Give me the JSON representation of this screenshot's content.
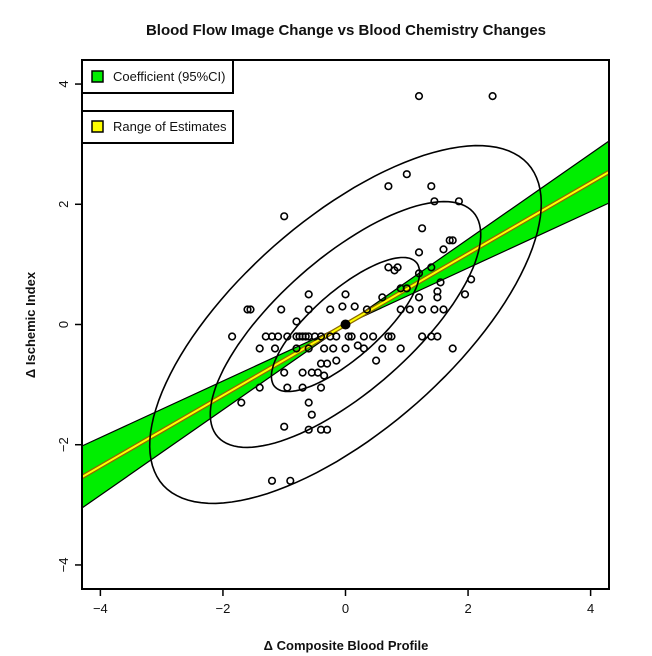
{
  "chart_data": {
    "type": "scatter",
    "title": "Blood Flow Image Change vs Blood Chemistry Changes",
    "xlabel": "Δ Composite Blood Profile",
    "ylabel": "Δ Ischemic Index",
    "xlim": [
      -4.3,
      4.3
    ],
    "ylim": [
      -4.4,
      4.4
    ],
    "xticks": [
      "−4",
      "−2",
      "0",
      "2",
      "4"
    ],
    "xtick_values": [
      -4,
      -2,
      0,
      2,
      4
    ],
    "yticks": [
      "−4",
      "−2",
      "0",
      "2",
      "4"
    ],
    "ytick_values": [
      -4,
      -2,
      0,
      2,
      4
    ],
    "grid": false,
    "legend": [
      {
        "label": "Coefficient (95%CI)",
        "color": "#00ee00"
      },
      {
        "label": "Range of Estimates",
        "color": "#ffff00"
      }
    ],
    "legend_position": "top-left",
    "regression": {
      "slope": 0.59,
      "slope_low": 0.47,
      "slope_high": 0.71,
      "intercept": 0
    },
    "centroid": [
      0,
      0
    ],
    "ellipses": [
      {
        "center": [
          0,
          0
        ],
        "a": 1.55,
        "b": 0.55,
        "angle_deg": 42
      },
      {
        "center": [
          0,
          0
        ],
        "a": 2.8,
        "b": 1.1,
        "angle_deg": 42
      },
      {
        "center": [
          0,
          0
        ],
        "a": 4.0,
        "b": 1.75,
        "angle_deg": 42
      }
    ],
    "points": [
      [
        1.2,
        3.8
      ],
      [
        2.4,
        3.8
      ],
      [
        1.0,
        2.5
      ],
      [
        0.7,
        2.3
      ],
      [
        1.4,
        2.3
      ],
      [
        1.45,
        2.05
      ],
      [
        1.85,
        2.05
      ],
      [
        -1.0,
        1.8
      ],
      [
        1.25,
        1.6
      ],
      [
        1.7,
        1.4
      ],
      [
        1.75,
        1.4
      ],
      [
        1.6,
        1.25
      ],
      [
        1.2,
        1.2
      ],
      [
        1.4,
        0.95
      ],
      [
        0.7,
        0.95
      ],
      [
        0.85,
        0.95
      ],
      [
        0.8,
        0.9
      ],
      [
        1.2,
        0.85
      ],
      [
        1.55,
        0.7
      ],
      [
        2.05,
        0.75
      ],
      [
        0.9,
        0.6
      ],
      [
        1.0,
        0.6
      ],
      [
        1.5,
        0.55
      ],
      [
        1.95,
        0.5
      ],
      [
        1.5,
        0.45
      ],
      [
        -0.6,
        0.5
      ],
      [
        0.0,
        0.5
      ],
      [
        1.2,
        0.45
      ],
      [
        0.6,
        0.45
      ],
      [
        -1.6,
        0.25
      ],
      [
        -1.05,
        0.25
      ],
      [
        -0.6,
        0.25
      ],
      [
        -0.25,
        0.25
      ],
      [
        -0.05,
        0.3
      ],
      [
        0.35,
        0.25
      ],
      [
        0.9,
        0.25
      ],
      [
        1.05,
        0.25
      ],
      [
        1.25,
        0.25
      ],
      [
        1.45,
        0.25
      ],
      [
        1.6,
        0.25
      ],
      [
        0.15,
        0.3
      ],
      [
        -0.8,
        0.05
      ],
      [
        -1.3,
        -0.2
      ],
      [
        -1.2,
        -0.2
      ],
      [
        -1.1,
        -0.2
      ],
      [
        -0.95,
        -0.2
      ],
      [
        -0.8,
        -0.2
      ],
      [
        -0.75,
        -0.2
      ],
      [
        -0.7,
        -0.2
      ],
      [
        -0.65,
        -0.2
      ],
      [
        -0.6,
        -0.2
      ],
      [
        -0.5,
        -0.2
      ],
      [
        -0.4,
        -0.2
      ],
      [
        -0.25,
        -0.2
      ],
      [
        -0.15,
        -0.2
      ],
      [
        0.05,
        -0.2
      ],
      [
        0.1,
        -0.2
      ],
      [
        0.3,
        -0.2
      ],
      [
        0.45,
        -0.2
      ],
      [
        0.7,
        -0.2
      ],
      [
        1.25,
        -0.2
      ],
      [
        1.4,
        -0.2
      ],
      [
        1.5,
        -0.2
      ],
      [
        -1.85,
        -0.2
      ],
      [
        -1.4,
        -0.4
      ],
      [
        -1.15,
        -0.4
      ],
      [
        -0.8,
        -0.4
      ],
      [
        -0.6,
        -0.4
      ],
      [
        -0.35,
        -0.4
      ],
      [
        -0.2,
        -0.4
      ],
      [
        0.0,
        -0.4
      ],
      [
        0.3,
        -0.4
      ],
      [
        0.6,
        -0.4
      ],
      [
        0.9,
        -0.4
      ],
      [
        -0.4,
        -0.65
      ],
      [
        -0.3,
        -0.65
      ],
      [
        -0.15,
        -0.6
      ],
      [
        0.5,
        -0.6
      ],
      [
        -1.0,
        -0.8
      ],
      [
        -0.7,
        -0.8
      ],
      [
        -0.55,
        -0.8
      ],
      [
        -0.45,
        -0.8
      ],
      [
        1.75,
        -0.4
      ],
      [
        -1.4,
        -1.05
      ],
      [
        -0.95,
        -1.05
      ],
      [
        -0.7,
        -1.05
      ],
      [
        -0.4,
        -1.05
      ],
      [
        -1.7,
        -1.3
      ],
      [
        -0.6,
        -1.3
      ],
      [
        -0.55,
        -1.5
      ],
      [
        -1.0,
        -1.7
      ],
      [
        -0.6,
        -1.75
      ],
      [
        -0.4,
        -1.75
      ],
      [
        -0.3,
        -1.75
      ],
      [
        -1.2,
        -2.6
      ],
      [
        -0.9,
        -2.6
      ],
      [
        -0.35,
        -0.85
      ],
      [
        0.2,
        -0.35
      ],
      [
        -1.55,
        0.25
      ],
      [
        0.75,
        -0.2
      ]
    ]
  }
}
